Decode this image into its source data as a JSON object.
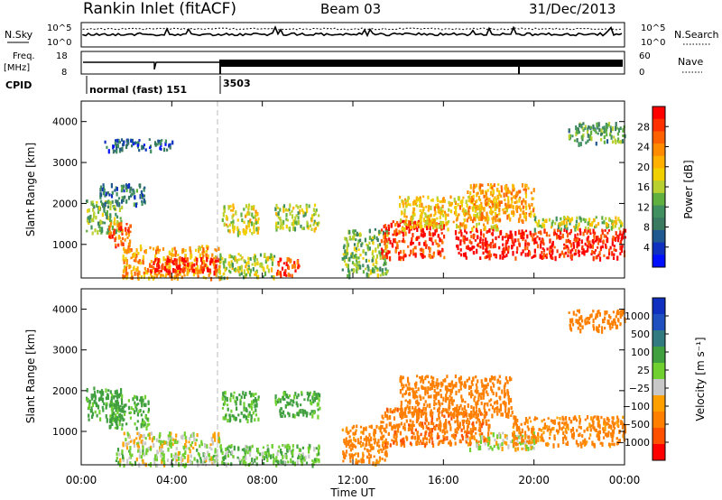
{
  "header": {
    "station": "Rankin Inlet (fitACF)",
    "beam": "Beam 03",
    "date": "31/Dec/2013"
  },
  "top_panels": {
    "left_nsky": "N.Sky",
    "nsky_top": "10^5",
    "nsky_bottom": "10^0",
    "right_top": "10^5",
    "right_bottom": "10^0",
    "right_nsearch": "N.Search",
    "freq_label": "Freq.",
    "freq_unit": "[MHz]",
    "freq_top": "18",
    "freq_bottom": "8",
    "nave_top": "60",
    "nave_bottom": "0",
    "nave_label": "Nave",
    "cpid_label": "CPID",
    "cpid_1": "normal (fast) 151",
    "cpid_2": "3503"
  },
  "chart_data": [
    {
      "type": "heatmap",
      "name": "power",
      "ylabel": "Slant Range [km]",
      "colorbar_label": "Power [dB]",
      "colorbar_ticks": [
        "28",
        "24",
        "20",
        "16",
        "12",
        "8",
        "4"
      ],
      "colorbar_colors": [
        "#ff0000",
        "#ff3000",
        "#ff6000",
        "#ff8c00",
        "#ffb000",
        "#f0d000",
        "#b8d030",
        "#60b040",
        "#409060",
        "#3a7a60",
        "#205890",
        "#1030c0",
        "#0010ff"
      ],
      "ylim": [
        180,
        4500
      ],
      "yticks": [
        "1000",
        "2000",
        "3000",
        "4000"
      ],
      "regions": [
        {
          "t": [
            0.2,
            1.8
          ],
          "r": [
            1300,
            2100
          ],
          "power": 14
        },
        {
          "t": [
            1.2,
            2.2
          ],
          "r": [
            1000,
            1600
          ],
          "power": 26
        },
        {
          "t": [
            1.8,
            6.1
          ],
          "r": [
            200,
            1000
          ],
          "power": 22
        },
        {
          "t": [
            3.0,
            6.0
          ],
          "r": [
            350,
            700
          ],
          "power": 30
        },
        {
          "t": [
            0.8,
            2.8
          ],
          "r": [
            2000,
            2500
          ],
          "power": 8
        },
        {
          "t": [
            1.0,
            4.0
          ],
          "r": [
            3300,
            3600
          ],
          "power": 6
        },
        {
          "t": [
            6.2,
            7.8
          ],
          "r": [
            1300,
            2000
          ],
          "power": 18
        },
        {
          "t": [
            6.0,
            8.5
          ],
          "r": [
            200,
            800
          ],
          "power": 16
        },
        {
          "t": [
            8.5,
            10.5
          ],
          "r": [
            1400,
            2000
          ],
          "power": 16
        },
        {
          "t": [
            8.6,
            9.6
          ],
          "r": [
            250,
            700
          ],
          "power": 28
        },
        {
          "t": [
            11.5,
            13.5
          ],
          "r": [
            250,
            1400
          ],
          "power": 14
        },
        {
          "t": [
            13.2,
            16.0
          ],
          "r": [
            700,
            1600
          ],
          "power": 28
        },
        {
          "t": [
            14.0,
            18.5
          ],
          "r": [
            1400,
            2200
          ],
          "power": 20
        },
        {
          "t": [
            16.5,
            24.0
          ],
          "r": [
            700,
            1400
          ],
          "power": 30
        },
        {
          "t": [
            17.0,
            20.0
          ],
          "r": [
            1600,
            2500
          ],
          "power": 22
        },
        {
          "t": [
            20.0,
            24.0
          ],
          "r": [
            1400,
            1700
          ],
          "power": 16
        },
        {
          "t": [
            21.5,
            24.0
          ],
          "r": [
            3500,
            4000
          ],
          "power": 12
        }
      ]
    },
    {
      "type": "heatmap",
      "name": "velocity",
      "ylabel": "Slant Range [km]",
      "colorbar_label": "Velocity [m s⁻¹]",
      "colorbar_ticks": [
        "1000",
        "500",
        "100",
        "25",
        "−25",
        "−100",
        "−500",
        "−1000"
      ],
      "colorbar_colors": [
        "#1030c0",
        "#2050c0",
        "#307a80",
        "#40a040",
        "#70d030",
        "#c8c8c8",
        "#ffa000",
        "#ff8000",
        "#ff5000",
        "#ff0000"
      ],
      "ylim": [
        180,
        4500
      ],
      "yticks": [
        "1000",
        "2000",
        "3000",
        "4000"
      ],
      "regions": [
        {
          "t": [
            0.2,
            1.8
          ],
          "r": [
            1300,
            2100
          ],
          "velocity": 150
        },
        {
          "t": [
            1.2,
            3.0
          ],
          "r": [
            1100,
            1900
          ],
          "velocity": 120
        },
        {
          "t": [
            1.8,
            6.1
          ],
          "r": [
            600,
            1000
          ],
          "velocity": 0
        },
        {
          "t": [
            1.5,
            6.0
          ],
          "r": [
            200,
            600
          ],
          "velocity": 40
        },
        {
          "t": [
            6.2,
            7.8
          ],
          "r": [
            1300,
            2000
          ],
          "velocity": 120
        },
        {
          "t": [
            6.0,
            10.5
          ],
          "r": [
            200,
            700
          ],
          "velocity": 80
        },
        {
          "t": [
            8.5,
            10.5
          ],
          "r": [
            1400,
            2000
          ],
          "velocity": 130
        },
        {
          "t": [
            11.5,
            13.5
          ],
          "r": [
            250,
            1200
          ],
          "velocity": -150
        },
        {
          "t": [
            13.2,
            18.0
          ],
          "r": [
            700,
            1600
          ],
          "velocity": -250
        },
        {
          "t": [
            14.0,
            19.0
          ],
          "r": [
            1400,
            2400
          ],
          "velocity": -200
        },
        {
          "t": [
            17.0,
            20.0
          ],
          "r": [
            600,
            1000
          ],
          "velocity": 0
        },
        {
          "t": [
            19.0,
            24.0
          ],
          "r": [
            700,
            1400
          ],
          "velocity": -150
        },
        {
          "t": [
            21.5,
            24.0
          ],
          "r": [
            3500,
            4000
          ],
          "velocity": -200
        }
      ]
    }
  ],
  "x_axis": {
    "label": "Time UT",
    "ticks": [
      "00:00",
      "04:00",
      "08:00",
      "12:00",
      "16:00",
      "20:00",
      "00:00"
    ]
  }
}
